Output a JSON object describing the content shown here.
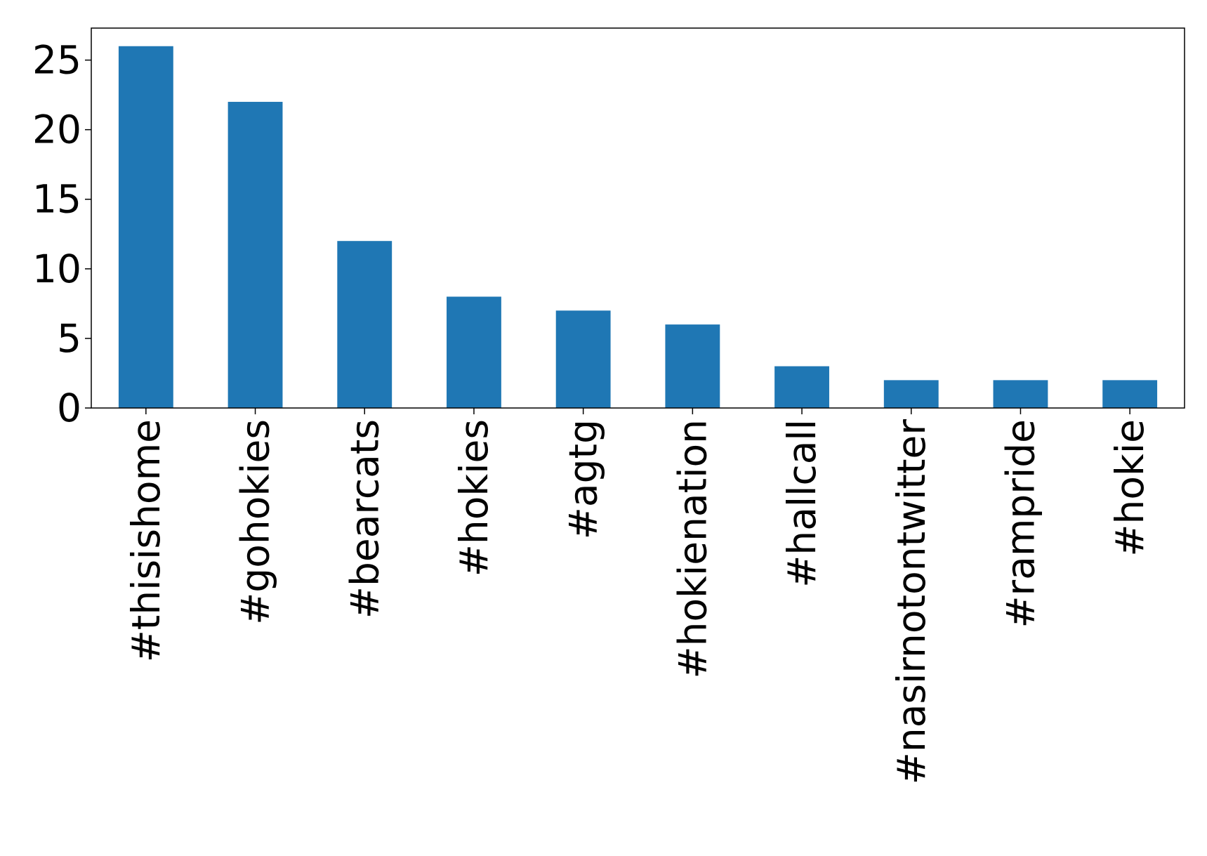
{
  "chart_data": {
    "type": "bar",
    "categories": [
      "#thisishome",
      "#gohokies",
      "#bearcats",
      "#hokies",
      "#agtg",
      "#hokienation",
      "#hallcall",
      "#nasirnotontwitter",
      "#rampride",
      "#hokie"
    ],
    "values": [
      26,
      22,
      12,
      8,
      7,
      6,
      3,
      2,
      2,
      2
    ],
    "color": "#1f77b4",
    "ylim": [
      0,
      27.3
    ],
    "yticks": [
      0,
      5,
      10,
      15,
      20,
      25
    ],
    "grid": false
  }
}
